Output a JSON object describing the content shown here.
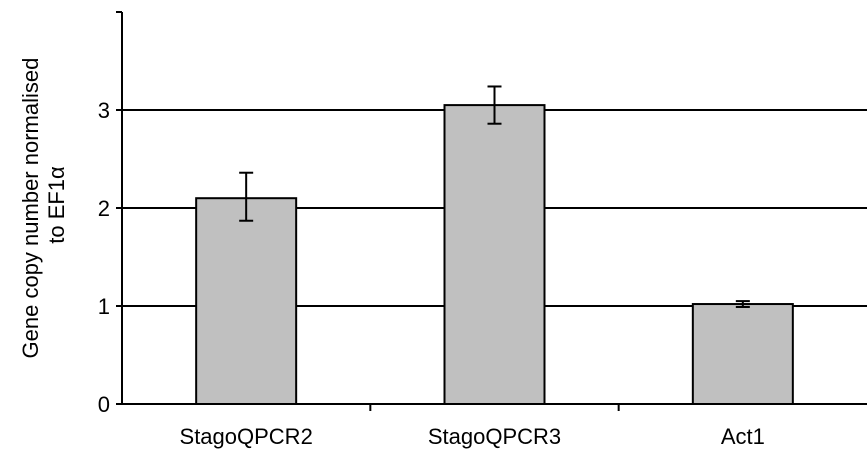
{
  "chart_data": {
    "type": "bar",
    "title": "",
    "xlabel": "",
    "ylabel_lines": [
      "Gene copy number normalised",
      "to EF1α"
    ],
    "categories": [
      "StagoQPCR2",
      "StagoQPCR3",
      "Act1"
    ],
    "values": [
      2.1,
      3.05,
      1.02
    ],
    "error_low": [
      1.87,
      2.86,
      0.99
    ],
    "error_high": [
      2.36,
      3.24,
      1.05
    ],
    "ylim": [
      0,
      4
    ],
    "yticks": [
      0,
      1,
      2,
      3
    ],
    "ytick_labels": [
      "0",
      "1",
      "2",
      "3"
    ],
    "grid": true,
    "legend": "none",
    "colors": {
      "bar_fill": "#c0c0c0",
      "bar_stroke": "#000000",
      "axis": "#000000",
      "grid": "#000000",
      "error_bar": "#000000"
    }
  }
}
